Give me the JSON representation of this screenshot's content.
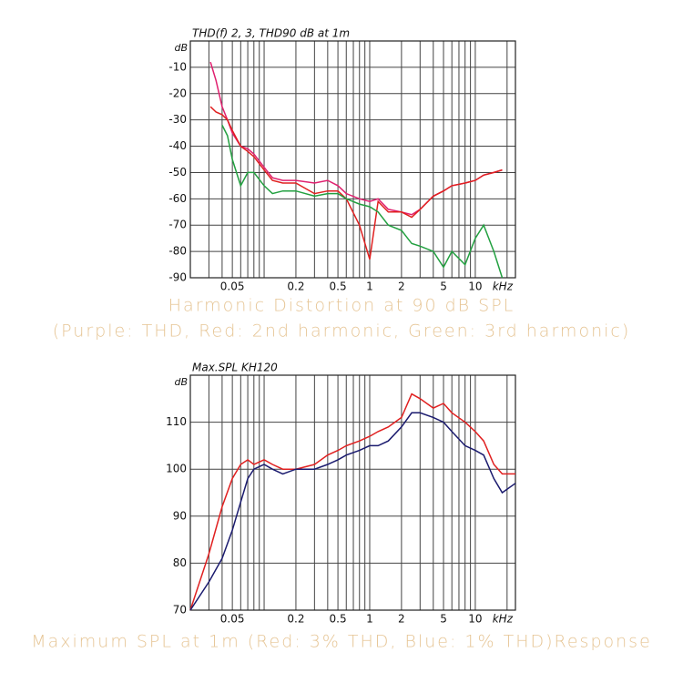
{
  "chart_data": [
    {
      "type": "line",
      "title": "THD(f) 2, 3, THD90 dB at 1m",
      "y_unit": "dB",
      "x_unit": "kHz",
      "log_x": true,
      "grid": true,
      "xlim": [
        0.02,
        24
      ],
      "xticks": [
        0.05,
        0.2,
        0.5,
        1,
        2,
        5,
        10
      ],
      "xgrid": [
        0.02,
        0.03,
        0.04,
        0.05,
        0.06,
        0.07,
        0.08,
        0.09,
        0.1,
        0.2,
        0.3,
        0.4,
        0.5,
        0.6,
        0.7,
        0.8,
        0.9,
        1,
        2,
        3,
        4,
        5,
        6,
        7,
        8,
        9,
        10,
        20
      ],
      "ylim": [
        -90,
        0
      ],
      "yticks": [
        -90,
        -80,
        -70,
        -60,
        -50,
        -40,
        -30,
        -20,
        -10
      ],
      "x": [
        0.031,
        0.035,
        0.04,
        0.045,
        0.05,
        0.06,
        0.07,
        0.08,
        0.1,
        0.12,
        0.15,
        0.2,
        0.3,
        0.4,
        0.5,
        0.6,
        0.8,
        1,
        1.2,
        1.5,
        2,
        2.5,
        3,
        4,
        5,
        6,
        8,
        10,
        12,
        15,
        18
      ],
      "series": [
        {
          "name": "THD",
          "color": "#e0206f",
          "values": [
            -8,
            -15,
            -25,
            -30,
            -35,
            -40,
            -41,
            -43,
            -48,
            -52,
            -53,
            -53,
            -54,
            -53,
            -55,
            -58,
            -60,
            -61,
            -60,
            -64,
            -65,
            -66,
            -64,
            -59,
            -57,
            -55,
            -54,
            -53,
            -51,
            -50,
            -49
          ]
        },
        {
          "name": "2nd harmonic",
          "color": "#e02020",
          "values": [
            -25,
            -27,
            -28,
            -30,
            -34,
            -40,
            -42,
            -44,
            -49,
            -53,
            -54,
            -54,
            -58,
            -57,
            -57,
            -60,
            -70,
            -83,
            -61,
            -65,
            -65,
            -67,
            -64,
            -59,
            -57,
            -55,
            -54,
            -53,
            -51,
            -50,
            -49
          ]
        },
        {
          "name": "3rd harmonic",
          "color": "#22a040",
          "values": [
            null,
            null,
            -32,
            -36,
            -45,
            -55,
            -50,
            -50,
            -55,
            -58,
            -57,
            -57,
            -59,
            -58,
            -58,
            -60,
            -62,
            -63,
            -65,
            -70,
            -72,
            -77,
            -78,
            -80,
            -86,
            -80,
            -85,
            -75,
            -70,
            -80,
            -90
          ]
        }
      ],
      "captions": [
        "Harmonic Distortion at 90 dB SPL",
        "(Purple: THD, Red: 2nd harmonic, Green: 3rd harmonic)"
      ]
    },
    {
      "type": "line",
      "title": "Max.SPL KH120",
      "y_unit": "dB",
      "x_unit": "kHz",
      "log_x": true,
      "grid": true,
      "xlim": [
        0.02,
        24
      ],
      "xticks": [
        0.05,
        0.2,
        0.5,
        1,
        2,
        5,
        10
      ],
      "xgrid": [
        0.02,
        0.03,
        0.04,
        0.05,
        0.06,
        0.07,
        0.08,
        0.09,
        0.1,
        0.2,
        0.3,
        0.4,
        0.5,
        0.6,
        0.7,
        0.8,
        0.9,
        1,
        2,
        3,
        4,
        5,
        6,
        7,
        8,
        9,
        10,
        20
      ],
      "ylim": [
        70,
        120
      ],
      "yticks": [
        70,
        80,
        90,
        100,
        110
      ],
      "x": [
        0.02,
        0.03,
        0.04,
        0.05,
        0.06,
        0.07,
        0.08,
        0.1,
        0.12,
        0.15,
        0.2,
        0.3,
        0.4,
        0.5,
        0.6,
        0.8,
        1,
        1.2,
        1.5,
        2,
        2.5,
        3,
        4,
        5,
        6,
        8,
        10,
        12,
        15,
        18,
        24
      ],
      "series": [
        {
          "name": "3% THD",
          "color": "#e02020",
          "values": [
            70,
            82,
            92,
            98,
            101,
            102,
            101,
            102,
            101,
            100,
            100,
            101,
            103,
            104,
            105,
            106,
            107,
            108,
            109,
            111,
            116,
            115,
            113,
            114,
            112,
            110,
            108,
            106,
            101,
            99,
            99
          ]
        },
        {
          "name": "1% THD",
          "color": "#1a1a6e",
          "values": [
            70,
            76,
            81,
            87,
            93,
            98,
            100,
            101,
            100,
            99,
            100,
            100,
            101,
            102,
            103,
            104,
            105,
            105,
            106,
            109,
            112,
            112,
            111,
            110,
            108,
            105,
            104,
            103,
            98,
            95,
            97
          ]
        }
      ],
      "captions": [
        "Maximum SPL at 1m (Red: 3% THD, Blue: 1% THD)Response"
      ]
    }
  ]
}
